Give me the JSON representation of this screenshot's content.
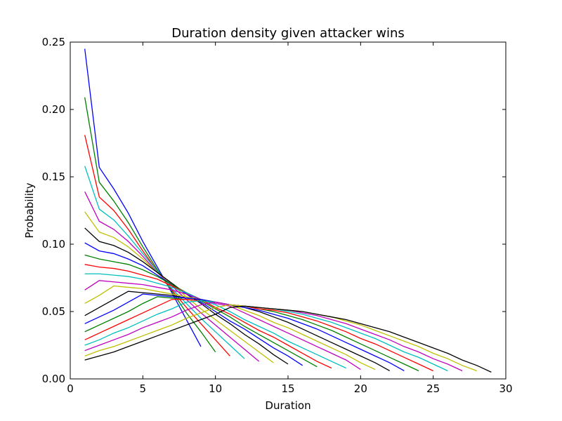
{
  "chart_data": {
    "type": "line",
    "title": "Duration density given attacker wins",
    "xlabel": "Duration",
    "ylabel": "Probability",
    "xlim": [
      0,
      30
    ],
    "ylim": [
      0,
      0.25
    ],
    "xticks": [
      "0",
      "5",
      "10",
      "15",
      "20",
      "25",
      "30"
    ],
    "yticks": [
      "0.00",
      "0.05",
      "0.10",
      "0.15",
      "0.20",
      "0.25"
    ],
    "grid": false,
    "series": [
      {
        "color": "#0000ff",
        "x": [
          1,
          2,
          3,
          4,
          5,
          6,
          7,
          8,
          9
        ],
        "values": [
          0.245,
          0.157,
          0.141,
          0.123,
          0.102,
          0.083,
          0.064,
          0.044,
          0.024
        ]
      },
      {
        "color": "#008000",
        "x": [
          1,
          2,
          3,
          4,
          5,
          6,
          7,
          8,
          9,
          10
        ],
        "values": [
          0.209,
          0.146,
          0.132,
          0.116,
          0.098,
          0.081,
          0.065,
          0.049,
          0.035,
          0.02
        ]
      },
      {
        "color": "#ff0000",
        "x": [
          1,
          2,
          3,
          4,
          5,
          6,
          7,
          8,
          9,
          10,
          11
        ],
        "values": [
          0.181,
          0.135,
          0.125,
          0.111,
          0.095,
          0.08,
          0.066,
          0.053,
          0.041,
          0.029,
          0.017
        ]
      },
      {
        "color": "#00bfbf",
        "x": [
          1,
          2,
          3,
          4,
          5,
          6,
          7,
          8,
          9,
          10,
          11,
          12
        ],
        "values": [
          0.158,
          0.126,
          0.118,
          0.106,
          0.093,
          0.08,
          0.067,
          0.056,
          0.045,
          0.035,
          0.025,
          0.015
        ]
      },
      {
        "color": "#bf00bf",
        "x": [
          1,
          2,
          3,
          4,
          5,
          6,
          7,
          8,
          9,
          10,
          11,
          12,
          13
        ],
        "values": [
          0.139,
          0.117,
          0.111,
          0.102,
          0.091,
          0.079,
          0.069,
          0.059,
          0.049,
          0.04,
          0.031,
          0.022,
          0.013
        ]
      },
      {
        "color": "#bfbf00",
        "x": [
          1,
          2,
          3,
          4,
          5,
          6,
          7,
          8,
          9,
          10,
          11,
          12,
          13,
          14
        ],
        "values": [
          0.124,
          0.109,
          0.105,
          0.098,
          0.089,
          0.079,
          0.07,
          0.061,
          0.052,
          0.044,
          0.036,
          0.028,
          0.02,
          0.012
        ]
      },
      {
        "color": "#000000",
        "x": [
          1,
          2,
          3,
          4,
          5,
          6,
          7,
          8,
          9,
          10,
          11,
          12,
          13,
          14,
          15
        ],
        "values": [
          0.112,
          0.102,
          0.099,
          0.094,
          0.087,
          0.079,
          0.071,
          0.063,
          0.056,
          0.048,
          0.041,
          0.033,
          0.026,
          0.018,
          0.011
        ]
      },
      {
        "color": "#0000ff",
        "x": [
          1,
          2,
          3,
          4,
          5,
          6,
          7,
          8,
          9,
          10,
          11,
          12,
          13,
          14,
          15,
          16
        ],
        "values": [
          0.101,
          0.095,
          0.093,
          0.089,
          0.084,
          0.077,
          0.07,
          0.063,
          0.057,
          0.05,
          0.043,
          0.037,
          0.03,
          0.023,
          0.017,
          0.01
        ]
      },
      {
        "color": "#008000",
        "x": [
          1,
          2,
          3,
          4,
          5,
          6,
          7,
          8,
          9,
          10,
          11,
          12,
          13,
          14,
          15,
          16,
          17
        ],
        "values": [
          0.092,
          0.089,
          0.087,
          0.085,
          0.081,
          0.076,
          0.07,
          0.064,
          0.058,
          0.052,
          0.046,
          0.039,
          0.033,
          0.027,
          0.021,
          0.015,
          0.009
        ]
      },
      {
        "color": "#ff0000",
        "x": [
          1,
          2,
          3,
          4,
          5,
          6,
          7,
          8,
          9,
          10,
          11,
          12,
          13,
          14,
          15,
          16,
          17,
          18
        ],
        "values": [
          0.085,
          0.083,
          0.082,
          0.08,
          0.077,
          0.074,
          0.069,
          0.064,
          0.059,
          0.053,
          0.048,
          0.042,
          0.036,
          0.031,
          0.025,
          0.019,
          0.013,
          0.008
        ]
      },
      {
        "color": "#00bfbf",
        "x": [
          1,
          2,
          3,
          4,
          5,
          6,
          7,
          8,
          9,
          10,
          11,
          12,
          13,
          14,
          15,
          16,
          17,
          18,
          19
        ],
        "values": [
          0.078,
          0.078,
          0.077,
          0.076,
          0.074,
          0.071,
          0.068,
          0.064,
          0.059,
          0.055,
          0.05,
          0.044,
          0.039,
          0.034,
          0.028,
          0.023,
          0.018,
          0.013,
          0.008
        ]
      },
      {
        "color": "#bf00bf",
        "x": [
          1,
          2,
          3,
          4,
          5,
          6,
          7,
          8,
          9,
          10,
          11,
          12,
          13,
          14,
          15,
          16,
          17,
          18,
          19,
          20
        ],
        "values": [
          0.066,
          0.073,
          0.072,
          0.071,
          0.07,
          0.068,
          0.066,
          0.063,
          0.059,
          0.056,
          0.054,
          0.049,
          0.044,
          0.039,
          0.034,
          0.029,
          0.024,
          0.019,
          0.014,
          0.007
        ]
      },
      {
        "color": "#bfbf00",
        "x": [
          1,
          2,
          3,
          4,
          5,
          6,
          7,
          8,
          9,
          10,
          11,
          12,
          13,
          14,
          15,
          16,
          17,
          18,
          19,
          20,
          21
        ],
        "values": [
          0.056,
          0.062,
          0.069,
          0.068,
          0.067,
          0.065,
          0.063,
          0.061,
          0.059,
          0.057,
          0.055,
          0.051,
          0.047,
          0.042,
          0.038,
          0.033,
          0.028,
          0.023,
          0.018,
          0.012,
          0.007
        ]
      },
      {
        "color": "#000000",
        "x": [
          1,
          2,
          3,
          4,
          5,
          6,
          7,
          8,
          9,
          10,
          11,
          12,
          13,
          14,
          15,
          16,
          17,
          18,
          19,
          20,
          21,
          22
        ],
        "values": [
          0.047,
          0.053,
          0.059,
          0.065,
          0.064,
          0.063,
          0.062,
          0.06,
          0.059,
          0.057,
          0.055,
          0.053,
          0.05,
          0.046,
          0.042,
          0.037,
          0.032,
          0.027,
          0.022,
          0.017,
          0.012,
          0.006
        ]
      },
      {
        "color": "#0000ff",
        "x": [
          1,
          2,
          3,
          4,
          5,
          6,
          7,
          8,
          9,
          10,
          11,
          12,
          13,
          14,
          15,
          16,
          17,
          18,
          19,
          20,
          21,
          22,
          23
        ],
        "values": [
          0.041,
          0.046,
          0.051,
          0.057,
          0.063,
          0.062,
          0.061,
          0.06,
          0.059,
          0.057,
          0.055,
          0.053,
          0.051,
          0.048,
          0.045,
          0.041,
          0.037,
          0.032,
          0.027,
          0.022,
          0.017,
          0.012,
          0.006
        ]
      },
      {
        "color": "#008000",
        "x": [
          1,
          2,
          3,
          4,
          5,
          6,
          7,
          8,
          9,
          10,
          11,
          12,
          13,
          14,
          15,
          16,
          17,
          18,
          19,
          20,
          21,
          22,
          23,
          24
        ],
        "values": [
          0.035,
          0.04,
          0.045,
          0.05,
          0.056,
          0.061,
          0.06,
          0.059,
          0.058,
          0.057,
          0.055,
          0.054,
          0.052,
          0.05,
          0.047,
          0.044,
          0.04,
          0.036,
          0.031,
          0.026,
          0.021,
          0.016,
          0.011,
          0.006
        ]
      },
      {
        "color": "#ff0000",
        "x": [
          1,
          2,
          3,
          4,
          5,
          6,
          7,
          8,
          9,
          10,
          11,
          12,
          13,
          14,
          15,
          16,
          17,
          18,
          19,
          20,
          21,
          22,
          23,
          24,
          25
        ],
        "values": [
          0.029,
          0.034,
          0.039,
          0.044,
          0.049,
          0.054,
          0.059,
          0.059,
          0.058,
          0.057,
          0.055,
          0.054,
          0.052,
          0.051,
          0.049,
          0.046,
          0.043,
          0.039,
          0.035,
          0.03,
          0.026,
          0.021,
          0.016,
          0.011,
          0.006
        ]
      },
      {
        "color": "#00bfbf",
        "x": [
          1,
          2,
          3,
          4,
          5,
          6,
          7,
          8,
          9,
          10,
          11,
          12,
          13,
          14,
          15,
          16,
          17,
          18,
          19,
          20,
          21,
          22,
          23,
          24,
          25,
          26
        ],
        "values": [
          0.025,
          0.029,
          0.034,
          0.038,
          0.043,
          0.048,
          0.052,
          0.057,
          0.058,
          0.057,
          0.055,
          0.054,
          0.053,
          0.052,
          0.05,
          0.048,
          0.045,
          0.042,
          0.038,
          0.034,
          0.03,
          0.025,
          0.02,
          0.016,
          0.011,
          0.006
        ]
      },
      {
        "color": "#bf00bf",
        "x": [
          1,
          2,
          3,
          4,
          5,
          6,
          7,
          8,
          9,
          10,
          11,
          12,
          13,
          14,
          15,
          16,
          17,
          18,
          19,
          20,
          21,
          22,
          23,
          24,
          25,
          26,
          27
        ],
        "values": [
          0.021,
          0.025,
          0.029,
          0.033,
          0.038,
          0.042,
          0.046,
          0.051,
          0.055,
          0.057,
          0.055,
          0.054,
          0.053,
          0.052,
          0.051,
          0.049,
          0.047,
          0.044,
          0.041,
          0.037,
          0.033,
          0.029,
          0.024,
          0.02,
          0.015,
          0.011,
          0.006
        ]
      },
      {
        "color": "#bfbf00",
        "x": [
          1,
          2,
          3,
          4,
          5,
          6,
          7,
          8,
          9,
          10,
          11,
          12,
          13,
          14,
          15,
          16,
          17,
          18,
          19,
          20,
          21,
          22,
          23,
          24,
          25,
          26,
          27,
          28
        ],
        "values": [
          0.017,
          0.021,
          0.024,
          0.028,
          0.032,
          0.036,
          0.04,
          0.045,
          0.049,
          0.053,
          0.055,
          0.054,
          0.053,
          0.052,
          0.051,
          0.05,
          0.048,
          0.046,
          0.043,
          0.04,
          0.036,
          0.032,
          0.028,
          0.024,
          0.019,
          0.015,
          0.01,
          0.006
        ]
      },
      {
        "color": "#000000",
        "x": [
          1,
          2,
          3,
          4,
          5,
          6,
          7,
          8,
          9,
          10,
          11,
          12,
          13,
          14,
          15,
          16,
          17,
          18,
          19,
          20,
          21,
          22,
          23,
          24,
          25,
          26,
          27,
          28,
          29
        ],
        "values": [
          0.014,
          0.017,
          0.02,
          0.024,
          0.028,
          0.032,
          0.036,
          0.04,
          0.044,
          0.048,
          0.053,
          0.054,
          0.053,
          0.052,
          0.051,
          0.05,
          0.048,
          0.046,
          0.044,
          0.041,
          0.038,
          0.035,
          0.031,
          0.027,
          0.023,
          0.019,
          0.014,
          0.01,
          0.005
        ]
      }
    ]
  }
}
